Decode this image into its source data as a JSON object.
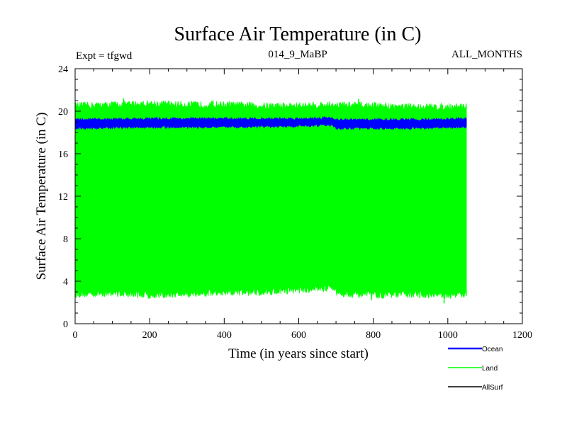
{
  "header": {
    "title": "Surface Air Temperature (in C)",
    "expt_label": "Expt = tfgwd",
    "run_id": "014_9_MaBP",
    "months": "ALL_MONTHS"
  },
  "chart_data": {
    "type": "line",
    "title": "Surface Air Temperature (in C)",
    "xlabel": "Time (in years since start)",
    "ylabel": "Surface Air Temperature (in C)",
    "xlim": [
      0,
      1200
    ],
    "ylim": [
      0,
      24
    ],
    "x_ticks": [
      0,
      200,
      400,
      600,
      800,
      1000,
      1200
    ],
    "y_ticks": [
      0,
      4,
      8,
      12,
      16,
      20,
      24
    ],
    "x_minor_step": 50,
    "y_minor_step": 1,
    "x_end": 1050,
    "colors": {
      "Ocean": "#0000ff",
      "Land": "#00ff00",
      "AllSurf": "#000000"
    },
    "series": [
      {
        "name": "Land",
        "color": "#00ff00",
        "description": "monthly oscillation",
        "min_envelope": [
          [
            0,
            2.8
          ],
          [
            100,
            2.9
          ],
          [
            200,
            2.7
          ],
          [
            300,
            2.8
          ],
          [
            400,
            2.9
          ],
          [
            500,
            3.0
          ],
          [
            600,
            3.2
          ],
          [
            690,
            3.4
          ],
          [
            700,
            2.9
          ],
          [
            800,
            2.7
          ],
          [
            900,
            2.8
          ],
          [
            1000,
            2.7
          ],
          [
            1050,
            2.8
          ]
        ],
        "max_envelope": [
          [
            0,
            20.5
          ],
          [
            100,
            20.6
          ],
          [
            200,
            20.7
          ],
          [
            300,
            20.6
          ],
          [
            400,
            20.6
          ],
          [
            500,
            20.5
          ],
          [
            600,
            20.5
          ],
          [
            700,
            20.6
          ],
          [
            800,
            20.5
          ],
          [
            900,
            20.4
          ],
          [
            1000,
            20.4
          ],
          [
            1050,
            20.5
          ]
        ],
        "extreme_min": 1.9,
        "extreme_max": 21.2
      },
      {
        "name": "Ocean",
        "color": "#0000ff",
        "min_envelope": [
          [
            0,
            18.4
          ],
          [
            200,
            18.5
          ],
          [
            400,
            18.5
          ],
          [
            600,
            18.6
          ],
          [
            690,
            18.7
          ],
          [
            700,
            18.4
          ],
          [
            800,
            18.4
          ],
          [
            900,
            18.4
          ],
          [
            1050,
            18.5
          ]
        ],
        "max_envelope": [
          [
            0,
            19.2
          ],
          [
            200,
            19.3
          ],
          [
            400,
            19.3
          ],
          [
            600,
            19.3
          ],
          [
            690,
            19.4
          ],
          [
            700,
            19.2
          ],
          [
            800,
            19.2
          ],
          [
            900,
            19.2
          ],
          [
            1050,
            19.3
          ]
        ]
      },
      {
        "name": "AllSurf",
        "color": "#000000",
        "min_envelope": [],
        "max_envelope": []
      }
    ],
    "legend": [
      "Ocean",
      "Land",
      "AllSurf"
    ],
    "legend_position": "bottom-right"
  }
}
